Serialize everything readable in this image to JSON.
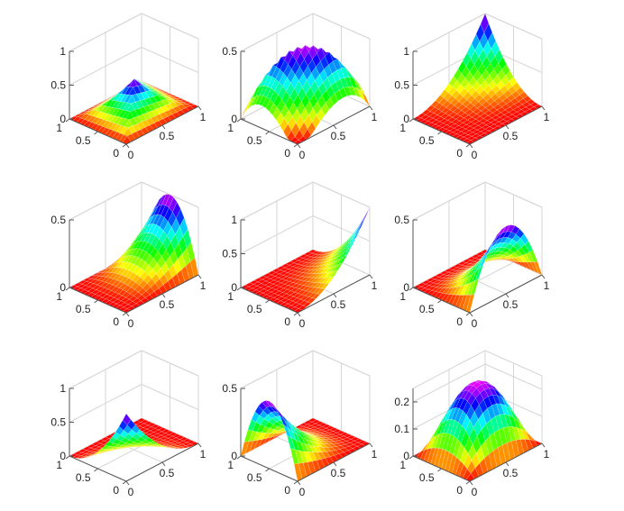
{
  "figure": {
    "layout": "3x3 grid of 3D surface plots",
    "background": "#ffffff"
  },
  "chart_data": [
    {
      "type": "surface",
      "id": "p1",
      "surface": "tent",
      "center": [
        0.5,
        0.5
      ],
      "peak": 0.5,
      "zlim": [
        0,
        1
      ],
      "zticks": [
        0,
        0.5,
        1
      ],
      "zticklabels": [
        "0",
        "0.5",
        "1"
      ],
      "xlim": [
        0,
        1
      ],
      "xticks": [
        0,
        0.5,
        1
      ],
      "xticklabels": [
        "0",
        "0.5",
        "1"
      ],
      "ylim": [
        0,
        1
      ],
      "yticks": [
        0,
        0.5,
        1
      ],
      "yticklabels": [
        "0",
        "0.5",
        "1"
      ],
      "colormap": "hsv",
      "grid": true
    },
    {
      "type": "surface",
      "id": "p2",
      "surface": "edge-mid-back-to-front",
      "peak": 0.5,
      "zlim": [
        0,
        0.5
      ],
      "zticks": [
        0,
        0.5
      ],
      "zticklabels": [
        "0",
        "0.5"
      ],
      "xlim": [
        0,
        1
      ],
      "xticks": [
        0,
        0.5,
        1
      ],
      "xticklabels": [
        "0",
        "0.5",
        "1"
      ],
      "ylim": [
        0,
        1
      ],
      "yticks": [
        0,
        0.5,
        1
      ],
      "yticklabels": [
        "0",
        "0.5",
        "1"
      ],
      "colormap": "hsv",
      "grid": true
    },
    {
      "type": "surface",
      "id": "p3",
      "surface": "corner",
      "corner": [
        1,
        1
      ],
      "peak": 1,
      "zlim": [
        0,
        1
      ],
      "zticks": [
        0,
        0.5,
        1
      ],
      "zticklabels": [
        "0",
        "0.5",
        "1"
      ],
      "xlim": [
        0,
        1
      ],
      "xticks": [
        0,
        0.5,
        1
      ],
      "xticklabels": [
        "0",
        "0.5",
        "1"
      ],
      "ylim": [
        0,
        1
      ],
      "yticks": [
        0,
        0.5,
        1
      ],
      "yticklabels": [
        "0",
        "0.5",
        "1"
      ],
      "colormap": "hsv",
      "grid": true
    },
    {
      "type": "surface",
      "id": "p4",
      "surface": "edge-mid",
      "edge": "x=1",
      "peak": 0.5,
      "zlim": [
        0,
        0.5
      ],
      "zticks": [
        0,
        0.5
      ],
      "zticklabels": [
        "0",
        "0.5"
      ],
      "xlim": [
        0,
        1
      ],
      "xticks": [
        0,
        0.5,
        1
      ],
      "xticklabels": [
        "0",
        "0.5",
        "1"
      ],
      "ylim": [
        0,
        1
      ],
      "yticks": [
        0,
        0.5,
        1
      ],
      "yticklabels": [
        "0",
        "0.5",
        "1"
      ],
      "colormap": "hsv",
      "grid": true
    },
    {
      "type": "surface",
      "id": "p5",
      "surface": "corner",
      "corner": [
        1,
        0
      ],
      "peak": 1,
      "zlim": [
        0,
        1
      ],
      "zticks": [
        0,
        0.5,
        1
      ],
      "zticklabels": [
        "0",
        "0.5",
        "1"
      ],
      "xlim": [
        0,
        1
      ],
      "xticks": [
        0,
        0.5,
        1
      ],
      "xticklabels": [
        "0",
        "0.5",
        "1"
      ],
      "ylim": [
        0,
        1
      ],
      "yticks": [
        0,
        0.5,
        1
      ],
      "yticklabels": [
        "0",
        "0.5",
        "1"
      ],
      "colormap": "hsv",
      "grid": true
    },
    {
      "type": "surface",
      "id": "p6",
      "surface": "edge-mid",
      "edge": "y=0",
      "peak": 0.5,
      "zlim": [
        0,
        0.5
      ],
      "zticks": [
        0,
        0.5
      ],
      "zticklabels": [
        "0",
        "0.5"
      ],
      "xlim": [
        0,
        1
      ],
      "xticks": [
        0,
        0.5,
        1
      ],
      "xticklabels": [
        "0",
        "0.5",
        "1"
      ],
      "ylim": [
        0,
        1
      ],
      "yticks": [
        0,
        0.5,
        1
      ],
      "yticklabels": [
        "0",
        "0.5",
        "1"
      ],
      "colormap": "hsv",
      "grid": true
    },
    {
      "type": "surface",
      "id": "p7",
      "surface": "corner",
      "corner": [
        0,
        0
      ],
      "peak": 1,
      "zlim": [
        0,
        1
      ],
      "zticks": [
        0,
        0.5,
        1
      ],
      "zticklabels": [
        "0",
        "0.5",
        "1"
      ],
      "xlim": [
        0,
        1
      ],
      "xticks": [
        0,
        0.5,
        1
      ],
      "xticklabels": [
        "0",
        "0.5",
        "1"
      ],
      "ylim": [
        0,
        1
      ],
      "yticks": [
        0,
        0.5,
        1
      ],
      "yticklabels": [
        "0",
        "0.5",
        "1"
      ],
      "colormap": "hsv",
      "grid": true
    },
    {
      "type": "surface",
      "id": "p8",
      "surface": "edge-mid",
      "edge": "x=0",
      "peak": 0.5,
      "zlim": [
        0,
        0.5
      ],
      "zticks": [
        0,
        0.5
      ],
      "zticklabels": [
        "0",
        "0.5"
      ],
      "xlim": [
        0,
        1
      ],
      "xticks": [
        0,
        0.5,
        1
      ],
      "xticklabels": [
        "0",
        "0.5",
        "1"
      ],
      "ylim": [
        0,
        1
      ],
      "yticks": [
        0,
        0.5,
        1
      ],
      "yticklabels": [
        "0",
        "0.5",
        "1"
      ],
      "colormap": "hsv",
      "grid": true
    },
    {
      "type": "surface",
      "id": "p9",
      "surface": "bubble",
      "peak": 0.25,
      "zlim": [
        0,
        0.25
      ],
      "zticks": [
        0,
        0.1,
        0.2
      ],
      "zticklabels": [
        "0",
        "0.1",
        "0.2"
      ],
      "xlim": [
        0,
        1
      ],
      "xticks": [
        0,
        0.5,
        1
      ],
      "xticklabels": [
        "0",
        "0.5",
        "1"
      ],
      "ylim": [
        0,
        1
      ],
      "yticks": [
        0,
        0.5,
        1
      ],
      "yticklabels": [
        "0",
        "0.5",
        "1"
      ],
      "colormap": "hsv",
      "grid": true
    }
  ]
}
